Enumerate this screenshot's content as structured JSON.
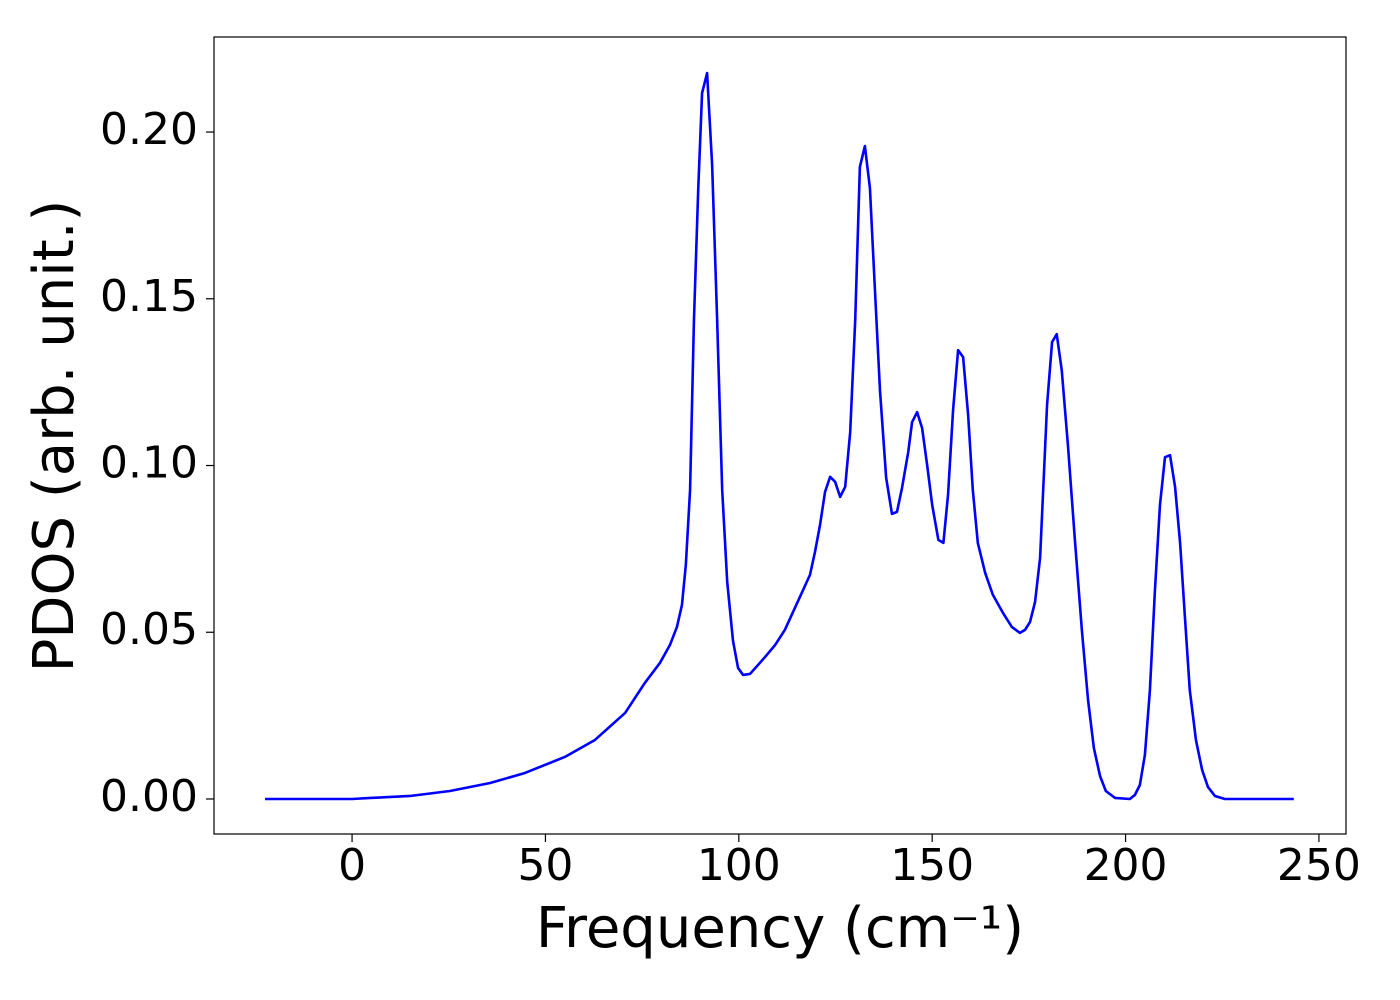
{
  "chart_data": {
    "type": "line",
    "xlabel": "Frequency (cm⁻¹)",
    "ylabel": "PDOS (arb. unit.)",
    "color": "#0000ff",
    "xlim": [
      -35.7,
      257.0
    ],
    "ylim": [
      -0.0105,
      0.2285
    ],
    "xticks": [
      0,
      50,
      100,
      150,
      200,
      250
    ],
    "yticks": [
      {
        "value": 0,
        "label": "0.00"
      },
      {
        "value": 0.05,
        "label": "0.05"
      },
      {
        "value": 0.1,
        "label": "0.10"
      },
      {
        "value": 0.15,
        "label": "0.15"
      },
      {
        "value": 0.2,
        "label": "0.20"
      }
    ],
    "x": [
      -22.5,
      0,
      4.7,
      15,
      25.3,
      35.7,
      44.7,
      55,
      62.8,
      70.6,
      75.7,
      79.6,
      82.2,
      84,
      85.3,
      86.3,
      87.4,
      88.4,
      89.5,
      90.5,
      91.8,
      93.1,
      94.4,
      95.7,
      97,
      98.5,
      99.8,
      101.1,
      102.9,
      106.8,
      109.4,
      111.9,
      115.8,
      118.4,
      119.7,
      121,
      122.3,
      123.6,
      124.9,
      126.2,
      127.5,
      128.8,
      130.1,
      131.3,
      132.6,
      133.9,
      135.2,
      136.5,
      138.1,
      139.6,
      140.9,
      142.2,
      143.8,
      144.8,
      146.1,
      147.4,
      148.7,
      150,
      151.6,
      152.9,
      154.1,
      155.4,
      156.7,
      158,
      159.3,
      160.5,
      161.8,
      163.7,
      165.7,
      168.3,
      170.6,
      172.7,
      174,
      175.3,
      176.6,
      177.9,
      179.7,
      181,
      182.2,
      183.5,
      185.1,
      186.9,
      188.7,
      190.3,
      191.8,
      193.4,
      194.9,
      197.3,
      201.1,
      202.4,
      203.7,
      205,
      206.3,
      207.6,
      208.9,
      210.2,
      211.5,
      212.8,
      214.1,
      215.4,
      216.6,
      218.2,
      219.8,
      221.3,
      223.1,
      225.7,
      243.5
    ],
    "values": [
      0,
      0,
      0.0003,
      0.0009,
      0.0024,
      0.0048,
      0.0078,
      0.0126,
      0.0177,
      0.0258,
      0.0348,
      0.0408,
      0.0462,
      0.0516,
      0.0582,
      0.0702,
      0.0927,
      0.1436,
      0.1826,
      0.2117,
      0.2177,
      0.1901,
      0.1436,
      0.0927,
      0.0651,
      0.0474,
      0.0393,
      0.0372,
      0.0375,
      0.0426,
      0.0462,
      0.0507,
      0.0606,
      0.0672,
      0.0741,
      0.0822,
      0.0921,
      0.0966,
      0.0951,
      0.0906,
      0.0936,
      0.11,
      0.1436,
      0.1895,
      0.1958,
      0.1832,
      0.1526,
      0.1226,
      0.0963,
      0.0855,
      0.0861,
      0.0933,
      0.104,
      0.113,
      0.116,
      0.1112,
      0.1001,
      0.0882,
      0.0777,
      0.0768,
      0.0912,
      0.1166,
      0.1346,
      0.1325,
      0.1151,
      0.0927,
      0.0768,
      0.0678,
      0.0612,
      0.0558,
      0.0516,
      0.0498,
      0.0507,
      0.0531,
      0.0591,
      0.0723,
      0.1181,
      0.137,
      0.1394,
      0.1286,
      0.1061,
      0.0777,
      0.0507,
      0.0297,
      0.0153,
      0.0069,
      0.0024,
      0.0003,
      0,
      0.0012,
      0.0042,
      0.0132,
      0.0327,
      0.0627,
      0.0882,
      0.1025,
      0.1031,
      0.0936,
      0.0768,
      0.0537,
      0.0327,
      0.0177,
      0.0087,
      0.0036,
      0.0009,
      0,
      0
    ]
  }
}
